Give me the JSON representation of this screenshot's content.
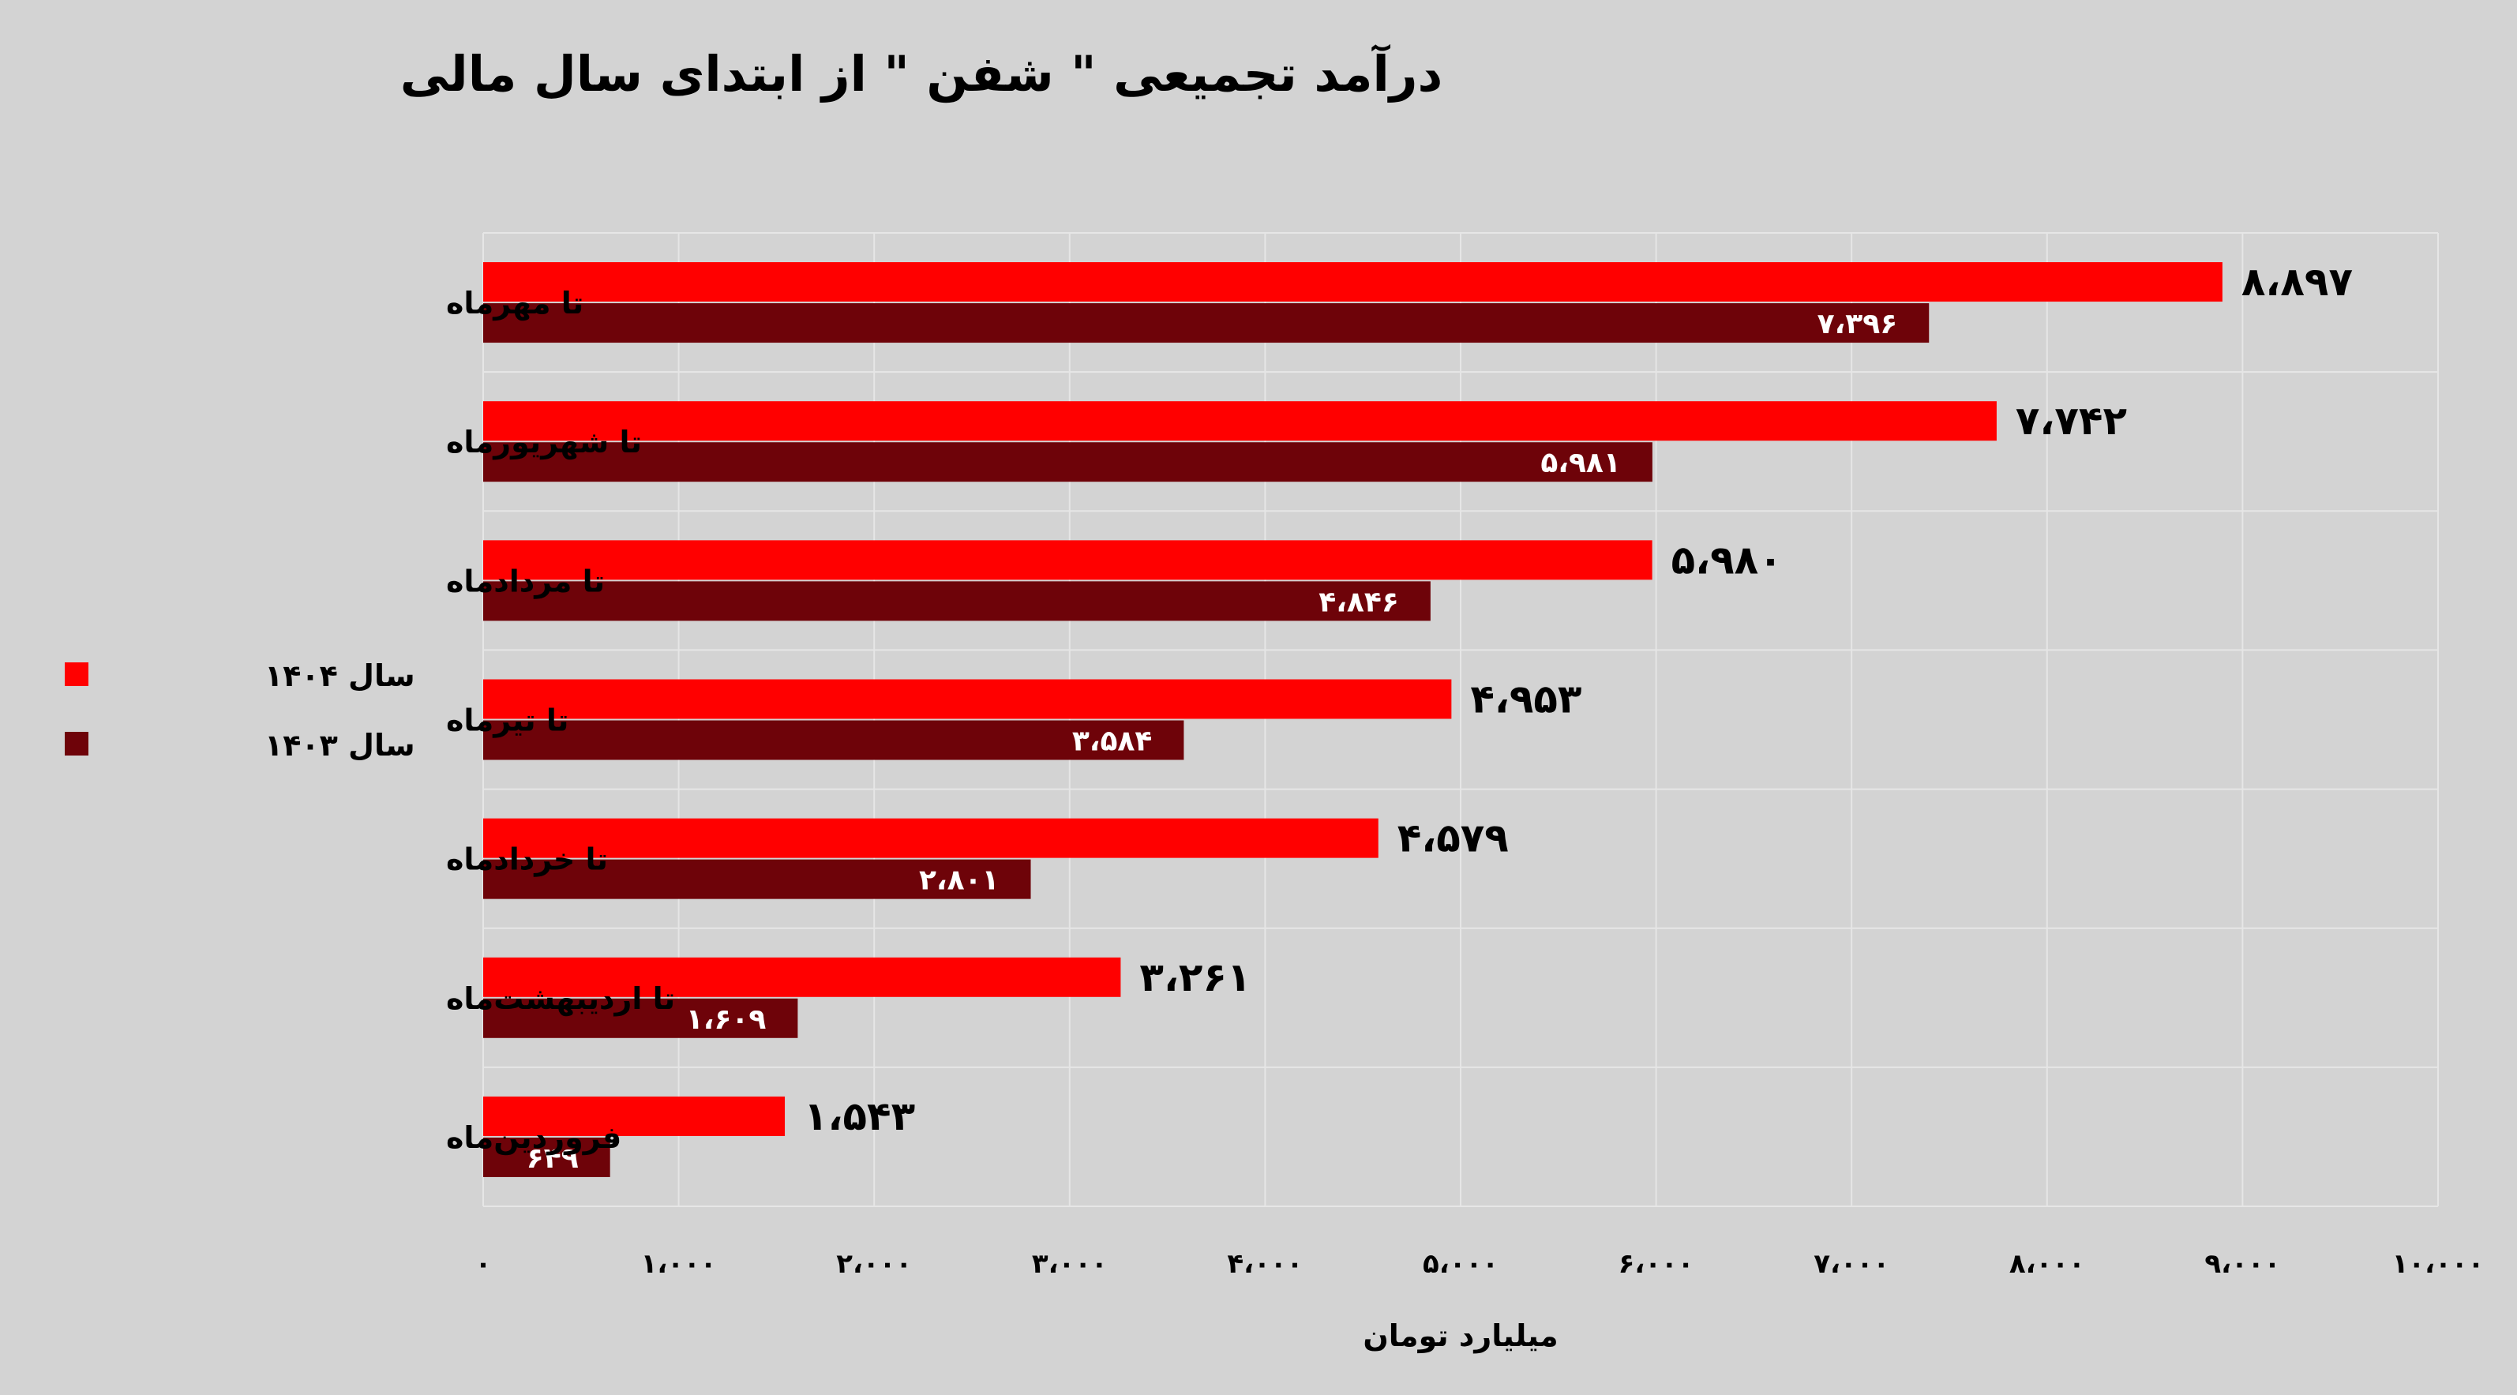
{
  "chart_data": {
    "type": "bar",
    "orientation": "horizontal",
    "title": "درآمد تجمیعی \" شفن \" از ابتدای سال مالی",
    "xlabel": "میلیارد تومان",
    "ylabel": "",
    "xlim": [
      0,
      10000
    ],
    "x_ticks": [
      0,
      1000,
      2000,
      3000,
      4000,
      5000,
      6000,
      7000,
      8000,
      9000,
      10000
    ],
    "x_tick_labels": [
      "۰",
      "۱،۰۰۰",
      "۲،۰۰۰",
      "۳،۰۰۰",
      "۴،۰۰۰",
      "۵،۰۰۰",
      "۶،۰۰۰",
      "۷،۰۰۰",
      "۸،۰۰۰",
      "۹،۰۰۰",
      "۱۰،۰۰۰"
    ],
    "grid": true,
    "legend_position": "left",
    "categories": [
      "تا مهرماه",
      "تا شهریورماه",
      "تا مردادماه",
      "تا تیرماه",
      "تا خردادماه",
      "تا اردیبهشت‌ماه",
      "فروردین‌ماه"
    ],
    "series": [
      {
        "name": "سال ۱۴۰۴",
        "color": "#ff0000",
        "values": [
          8897,
          7742,
          5980,
          4953,
          4579,
          3261,
          1543
        ],
        "labels": [
          "۸،۸۹۷",
          "۷،۷۴۲",
          "۵،۹۸۰",
          "۴،۹۵۳",
          "۴،۵۷۹",
          "۳،۲۶۱",
          "۱،۵۴۳"
        ]
      },
      {
        "name": "سال ۱۴۰۳",
        "color": "#6e0309",
        "values": [
          7396,
          5981,
          4846,
          3584,
          2801,
          1609,
          649
        ],
        "labels": [
          "۷،۳۹۶",
          "۵،۹۸۱",
          "۴،۸۴۶",
          "۳،۵۸۴",
          "۲،۸۰۱",
          "۱،۶۰۹",
          "۶۴۹"
        ]
      }
    ]
  }
}
